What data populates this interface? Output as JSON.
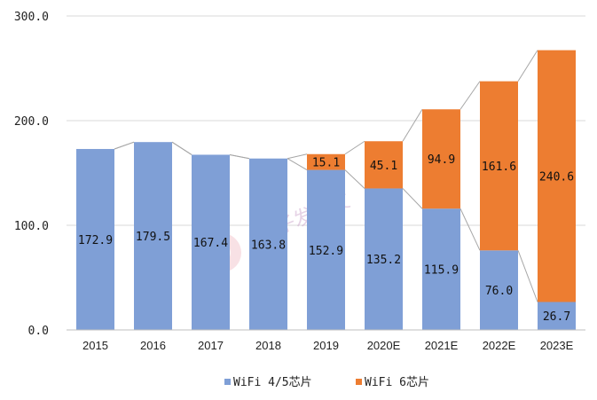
{
  "chart_data": {
    "type": "bar",
    "stacked": true,
    "categories": [
      "2015",
      "2016",
      "2017",
      "2018",
      "2019",
      "2020E",
      "2021E",
      "2022E",
      "2023E"
    ],
    "series": [
      {
        "name": "WiFi 4/5芯片",
        "color": "#7F9FD6",
        "values": [
          172.9,
          179.5,
          167.4,
          163.8,
          152.9,
          135.2,
          115.9,
          76.0,
          26.7
        ],
        "labels": [
          "172.9",
          "179.5",
          "167.4",
          "163.8",
          "152.9",
          "135.2",
          "115.9",
          "76.0",
          "26.7"
        ]
      },
      {
        "name": "WiFi 6芯片",
        "color": "#ED7D31",
        "values": [
          0,
          0,
          0,
          0,
          15.1,
          45.1,
          94.9,
          161.6,
          240.6
        ],
        "labels": [
          "",
          "",
          "",
          "",
          "15.1",
          "45.1",
          "94.9",
          "161.6",
          "240.6"
        ]
      }
    ],
    "yticks": [
      "0.0",
      "100.0",
      "200.0",
      "300.0"
    ],
    "ylim": [
      0,
      300
    ],
    "grid": true,
    "series_lines": true,
    "legend_position": "bottom",
    "watermark": "电子发烧友"
  }
}
